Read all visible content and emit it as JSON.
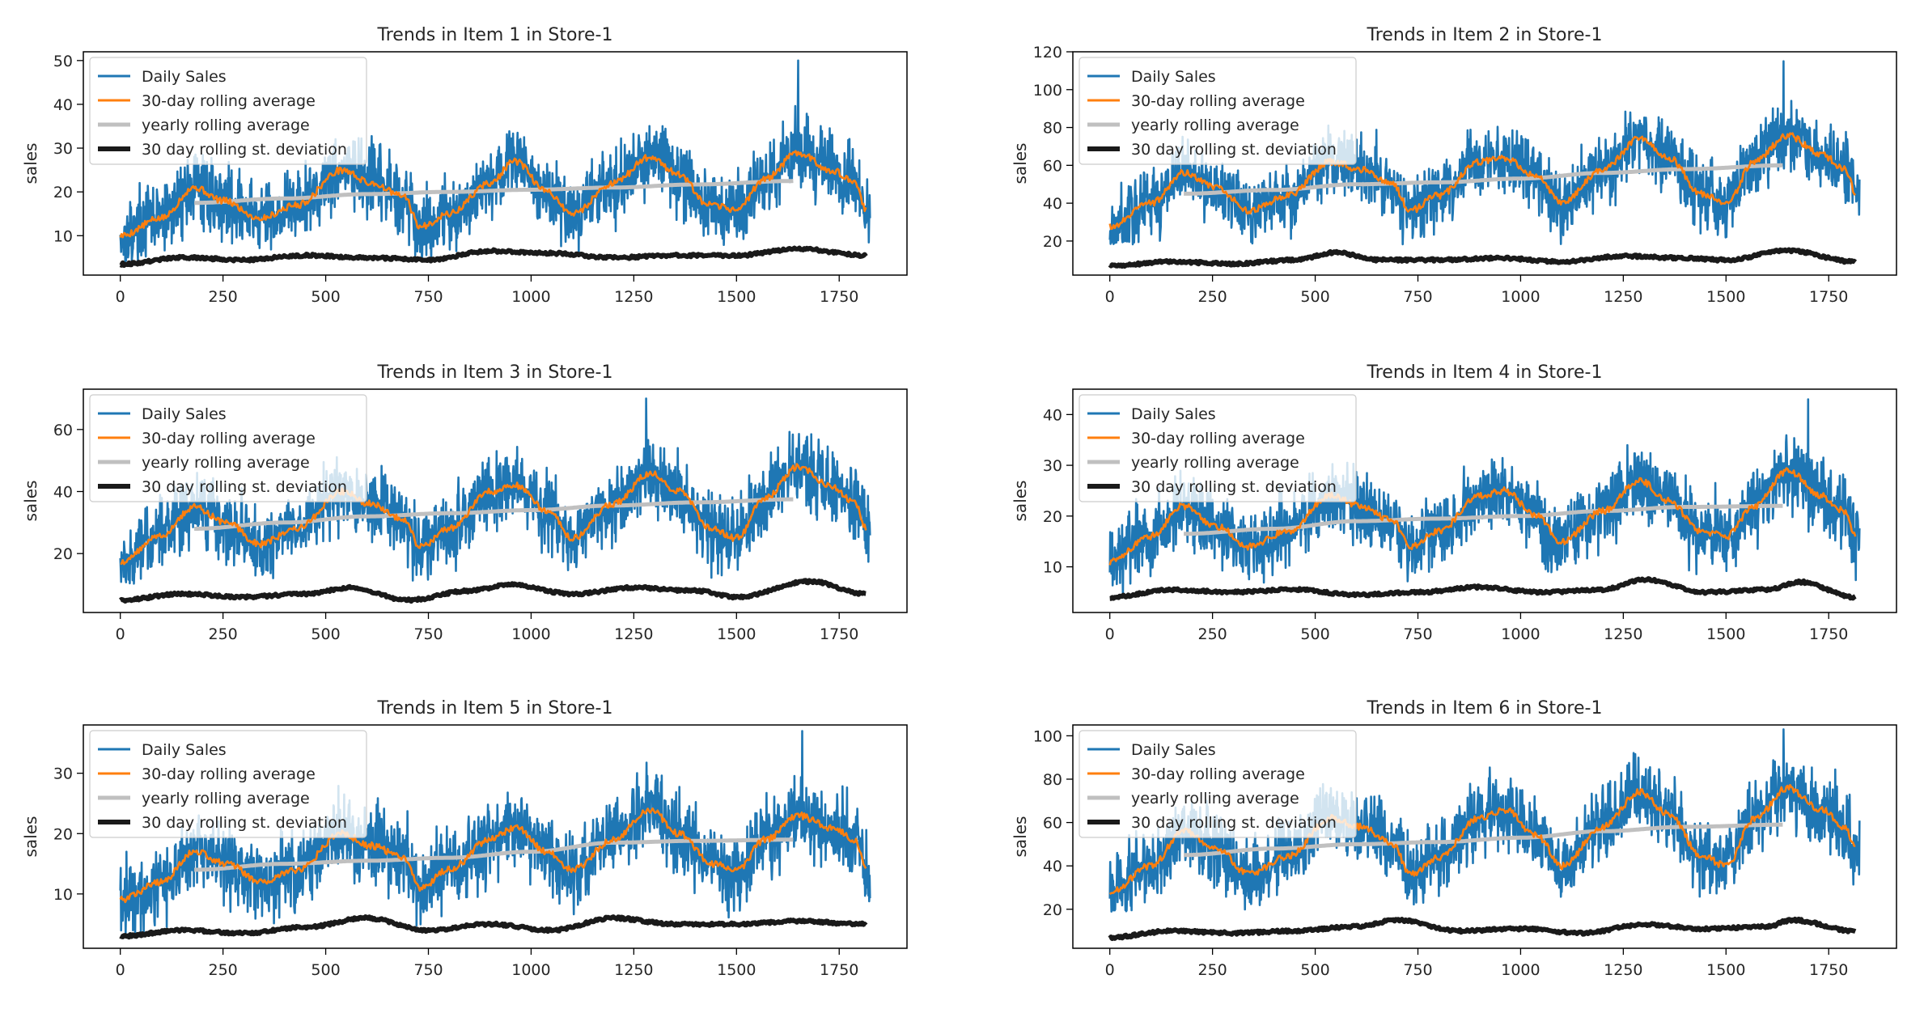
{
  "colors": {
    "daily": "#1f77b4",
    "rolling30": "#ff7f0e",
    "yearly": "#c0c0c0",
    "std30": "#1a1a1a",
    "frame": "#000000"
  },
  "legend_labels": [
    "Daily Sales",
    "30-day rolling average",
    "yearly rolling average",
    "30 day rolling st. deviation"
  ],
  "chart_data": [
    {
      "type": "line",
      "title": "Trends in Item 1 in Store-1",
      "xlabel": "",
      "ylabel": "sales",
      "xlim": [
        -90,
        1915
      ],
      "ylim": [
        1,
        52
      ],
      "xticks": [
        0,
        250,
        500,
        750,
        1000,
        1250,
        1500,
        1750
      ],
      "yticks": [
        10,
        20,
        30,
        40,
        50
      ],
      "legend": "upper left",
      "series": [
        {
          "name": "Daily Sales",
          "base": 20,
          "amp": 7,
          "trend": 4,
          "noise": 6.5,
          "peak": 50,
          "peak_x": 1650,
          "min": 4
        },
        {
          "name": "30-day rolling average",
          "x": [
            0,
            100,
            180,
            250,
            340,
            430,
            540,
            610,
            690,
            730,
            800,
            900,
            960,
            1040,
            1100,
            1200,
            1290,
            1360,
            1430,
            1500,
            1570,
            1650,
            1730,
            1790,
            1815
          ],
          "values": [
            10,
            14,
            21,
            18,
            14,
            17,
            25,
            22,
            19,
            12,
            15,
            22,
            27,
            20,
            15,
            22,
            28,
            24,
            17,
            16,
            23,
            29,
            25,
            22,
            16
          ]
        },
        {
          "name": "yearly rolling average",
          "x": [
            180,
            400,
            600,
            800,
            1000,
            1200,
            1400,
            1640
          ],
          "values": [
            17.5,
            18.5,
            19.5,
            20.0,
            20.5,
            21.0,
            21.7,
            22.5
          ]
        },
        {
          "name": "30 day rolling st. deviation",
          "x": [
            0,
            150,
            300,
            450,
            600,
            750,
            900,
            1050,
            1200,
            1350,
            1500,
            1650,
            1815
          ],
          "values": [
            3.5,
            5,
            4.5,
            5.5,
            5,
            4.5,
            6.5,
            6,
            5,
            5.5,
            5.5,
            7,
            5.5
          ]
        }
      ]
    },
    {
      "type": "line",
      "title": "Trends in Item 2 in Store-1",
      "xlabel": "",
      "ylabel": "sales",
      "xlim": [
        -90,
        1915
      ],
      "ylim": [
        2,
        120
      ],
      "xticks": [
        0,
        250,
        500,
        750,
        1000,
        1250,
        1500,
        1750
      ],
      "yticks": [
        20,
        40,
        60,
        80,
        100,
        120
      ],
      "legend": "upper left",
      "series": [
        {
          "name": "Daily Sales",
          "base": 53,
          "amp": 17,
          "trend": 12,
          "noise": 14,
          "peak": 115,
          "peak_x": 1640,
          "min": 18
        },
        {
          "name": "30-day rolling average",
          "x": [
            0,
            100,
            180,
            260,
            340,
            430,
            540,
            610,
            690,
            730,
            800,
            900,
            960,
            1040,
            1100,
            1200,
            1290,
            1360,
            1440,
            1500,
            1570,
            1650,
            1730,
            1790,
            1815
          ],
          "values": [
            28,
            40,
            56,
            48,
            36,
            44,
            62,
            58,
            50,
            36,
            44,
            62,
            64,
            54,
            40,
            58,
            74,
            64,
            45,
            40,
            62,
            76,
            66,
            58,
            46
          ]
        },
        {
          "name": "yearly rolling average",
          "x": [
            180,
            400,
            600,
            800,
            1000,
            1200,
            1400,
            1640
          ],
          "values": [
            45,
            47,
            50,
            51,
            53,
            56,
            58,
            60
          ]
        },
        {
          "name": "30 day rolling st. deviation",
          "x": [
            0,
            150,
            300,
            450,
            550,
            650,
            800,
            950,
            1100,
            1250,
            1400,
            1500,
            1650,
            1815
          ],
          "values": [
            7,
            9,
            8,
            10,
            14,
            10,
            10,
            11,
            9,
            12,
            11,
            10,
            15,
            9
          ]
        }
      ]
    },
    {
      "type": "line",
      "title": "Trends in Item 3 in Store-1",
      "xlabel": "",
      "ylabel": "sales",
      "xlim": [
        -90,
        1915
      ],
      "ylim": [
        1,
        73
      ],
      "xticks": [
        0,
        250,
        500,
        750,
        1000,
        1250,
        1500,
        1750
      ],
      "yticks": [
        20,
        40,
        60
      ],
      "legend": "upper left",
      "series": [
        {
          "name": "Daily Sales",
          "base": 33,
          "amp": 10,
          "trend": 7,
          "noise": 9,
          "peak": 70,
          "peak_x": 1280,
          "min": 10
        },
        {
          "name": "30-day rolling average",
          "x": [
            0,
            100,
            180,
            260,
            340,
            430,
            540,
            610,
            690,
            730,
            800,
            900,
            960,
            1040,
            1100,
            1200,
            1290,
            1360,
            1440,
            1500,
            1570,
            1650,
            1730,
            1790,
            1815
          ],
          "values": [
            17,
            26,
            35,
            30,
            23,
            28,
            40,
            36,
            31,
            22,
            28,
            40,
            42,
            34,
            25,
            36,
            46,
            40,
            28,
            25,
            38,
            48,
            42,
            36,
            28
          ]
        },
        {
          "name": "yearly rolling average",
          "x": [
            180,
            400,
            600,
            800,
            1000,
            1200,
            1400,
            1640
          ],
          "values": [
            28,
            30,
            32,
            33,
            34,
            35.5,
            36.5,
            37.5
          ]
        },
        {
          "name": "30 day rolling st. deviation",
          "x": [
            0,
            150,
            300,
            450,
            560,
            700,
            850,
            950,
            1100,
            1250,
            1400,
            1500,
            1680,
            1815
          ],
          "values": [
            5,
            7,
            6,
            7,
            9,
            5,
            8,
            10,
            7,
            9,
            8,
            6,
            11,
            7
          ]
        }
      ]
    },
    {
      "type": "line",
      "title": "Trends in Item 4 in Store-1",
      "xlabel": "",
      "ylabel": "sales",
      "xlim": [
        -90,
        1915
      ],
      "ylim": [
        1,
        45
      ],
      "xticks": [
        0,
        250,
        500,
        750,
        1000,
        1250,
        1500,
        1750
      ],
      "yticks": [
        10,
        20,
        30,
        40
      ],
      "legend": "upper left",
      "series": [
        {
          "name": "Daily Sales",
          "base": 19,
          "amp": 6,
          "trend": 4,
          "noise": 5.5,
          "peak": 43,
          "peak_x": 1700,
          "min": 4
        },
        {
          "name": "30-day rolling average",
          "x": [
            0,
            100,
            180,
            260,
            340,
            430,
            540,
            610,
            690,
            730,
            800,
            900,
            960,
            1040,
            1100,
            1200,
            1290,
            1360,
            1440,
            1500,
            1570,
            1650,
            1730,
            1790,
            1815
          ],
          "values": [
            11,
            16,
            22,
            18,
            14,
            17,
            24,
            22,
            19,
            14,
            17,
            24,
            25,
            20,
            15,
            21,
            27,
            23,
            17,
            16,
            22,
            29,
            24,
            21,
            16
          ]
        },
        {
          "name": "yearly rolling average",
          "x": [
            180,
            400,
            600,
            800,
            1000,
            1200,
            1400,
            1640
          ],
          "values": [
            16.5,
            17.5,
            19,
            19.5,
            20,
            21,
            21.8,
            22
          ]
        },
        {
          "name": "30 day rolling st. deviation",
          "x": [
            0,
            150,
            300,
            450,
            600,
            750,
            900,
            1050,
            1200,
            1300,
            1450,
            1600,
            1680,
            1815
          ],
          "values": [
            4,
            5.5,
            5,
            5.5,
            4.5,
            5,
            6,
            5,
            5.5,
            7.5,
            5,
            5.5,
            7,
            4
          ]
        }
      ]
    },
    {
      "type": "line",
      "title": "Trends in Item 5 in Store-1",
      "xlabel": "",
      "ylabel": "sales",
      "xlim": [
        -90,
        1915
      ],
      "ylim": [
        1,
        38
      ],
      "xticks": [
        0,
        250,
        500,
        750,
        1000,
        1250,
        1500,
        1750
      ],
      "yticks": [
        10,
        20,
        30
      ],
      "legend": "upper left",
      "series": [
        {
          "name": "Daily Sales",
          "base": 17,
          "amp": 5,
          "trend": 4,
          "noise": 5,
          "peak": 37,
          "peak_x": 1660,
          "min": 3
        },
        {
          "name": "30-day rolling average",
          "x": [
            0,
            100,
            180,
            260,
            340,
            430,
            540,
            610,
            690,
            730,
            800,
            900,
            960,
            1040,
            1100,
            1200,
            1290,
            1360,
            1440,
            1500,
            1570,
            1650,
            1730,
            1790,
            1815
          ],
          "values": [
            9,
            12,
            17,
            15,
            12,
            14,
            20,
            18,
            16,
            11,
            14,
            19,
            21,
            17,
            14,
            19,
            24,
            20,
            15,
            14,
            19,
            23,
            21,
            19,
            14
          ]
        },
        {
          "name": "yearly rolling average",
          "x": [
            180,
            400,
            600,
            800,
            1000,
            1200,
            1400,
            1640
          ],
          "values": [
            14,
            15,
            15.5,
            16,
            17,
            18.5,
            18.8,
            19
          ]
        },
        {
          "name": "30 day rolling st. deviation",
          "x": [
            0,
            150,
            300,
            450,
            600,
            750,
            900,
            1050,
            1200,
            1350,
            1500,
            1650,
            1815
          ],
          "values": [
            3,
            4,
            3.5,
            4.5,
            6,
            4,
            5,
            4,
            6,
            5,
            5,
            5.5,
            5
          ]
        }
      ]
    },
    {
      "type": "line",
      "title": "Trends in Item 6 in Store-1",
      "xlabel": "",
      "ylabel": "sales",
      "xlim": [
        -90,
        1915
      ],
      "ylim": [
        2,
        105
      ],
      "xticks": [
        0,
        250,
        500,
        750,
        1000,
        1250,
        1500,
        1750
      ],
      "yticks": [
        20,
        40,
        60,
        80,
        100
      ],
      "legend": "upper left",
      "series": [
        {
          "name": "Daily Sales",
          "base": 53,
          "amp": 17,
          "trend": 12,
          "noise": 13,
          "peak": 103,
          "peak_x": 1640,
          "min": 18
        },
        {
          "name": "30-day rolling average",
          "x": [
            0,
            100,
            180,
            260,
            340,
            430,
            540,
            610,
            690,
            730,
            800,
            900,
            960,
            1040,
            1100,
            1200,
            1290,
            1360,
            1440,
            1500,
            1570,
            1650,
            1730,
            1790,
            1815
          ],
          "values": [
            28,
            40,
            56,
            48,
            36,
            44,
            62,
            58,
            50,
            36,
            44,
            62,
            66,
            54,
            40,
            58,
            74,
            64,
            45,
            40,
            62,
            76,
            66,
            58,
            48
          ]
        },
        {
          "name": "yearly rolling average",
          "x": [
            180,
            400,
            600,
            800,
            1000,
            1200,
            1400,
            1640
          ],
          "values": [
            45,
            48,
            50,
            51,
            53,
            56,
            58,
            59
          ]
        },
        {
          "name": "30 day rolling st. deviation",
          "x": [
            0,
            150,
            300,
            450,
            600,
            700,
            850,
            1000,
            1150,
            1300,
            1450,
            1600,
            1660,
            1815
          ],
          "values": [
            7,
            10,
            9,
            10,
            12,
            15,
            10,
            11,
            9,
            13,
            11,
            12,
            15,
            10
          ]
        }
      ]
    }
  ]
}
